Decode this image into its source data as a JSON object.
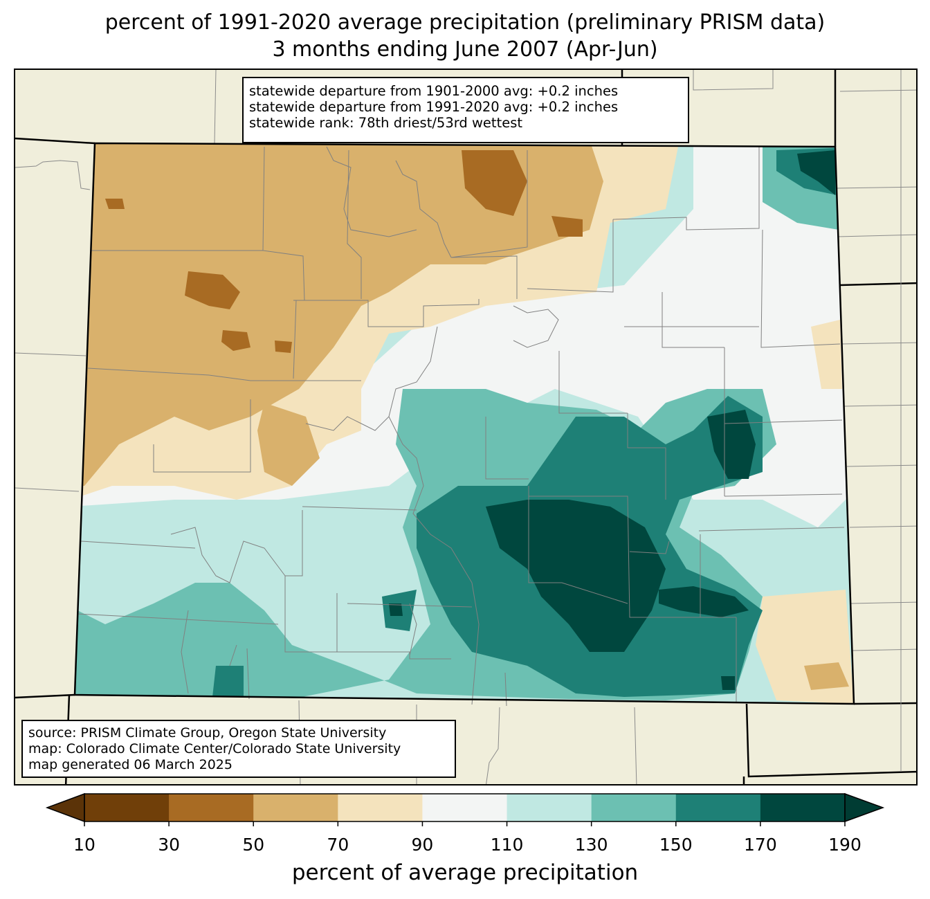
{
  "title": {
    "line1": "percent of 1991-2020 average precipitation (preliminary PRISM data)",
    "line2": "3 months ending June 2007 (Apr-Jun)"
  },
  "stats_box": {
    "line1": "statewide departure from 1901-2000 avg: +0.2 inches",
    "line2": "statewide departure from 1991-2020 avg: +0.2 inches",
    "line3": "statewide rank: 78th driest/53rd wettest"
  },
  "source_box": {
    "line1": "source: PRISM Climate Group, Oregon State University",
    "line2": "map: Colorado Climate Center/Colorado State University",
    "line3": "map generated 06 March 2025"
  },
  "colorbar": {
    "label": "percent of average precipitation",
    "ticks": [
      "10",
      "30",
      "50",
      "70",
      "90",
      "110",
      "130",
      "150",
      "170",
      "190"
    ],
    "colors": [
      "#703f09",
      "#a86b23",
      "#d9b16c",
      "#f4e3bd",
      "#f3f5f4",
      "#c0e8e2",
      "#6cc0b2",
      "#1e8076",
      "#00473e"
    ],
    "extend_low_color": "#5b3308",
    "extend_high_color": "#003c33"
  },
  "map_colors": {
    "background": "#f0eedb",
    "state_border": "#000000",
    "county_border": "#808080"
  }
}
